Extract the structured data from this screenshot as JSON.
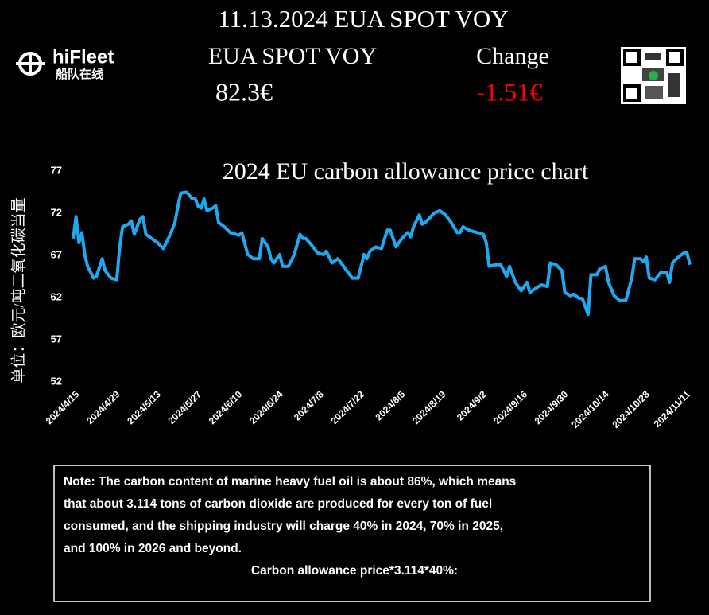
{
  "header": {
    "logo": "hiFleet",
    "logo_sub": "船队在线",
    "title": "11.13.2024 EUA SPOT VOY",
    "price_label": "EUA SPOT VOY",
    "change_label": "Change",
    "price": "82.3€",
    "change": "-1.51€"
  },
  "chart_data": {
    "type": "line",
    "title": "2024 EU carbon allowance price chart",
    "y_label": "单位：欧元/吨二氧化碳当量",
    "color": "#1eaaf0",
    "xlim": [
      "2024/4/15",
      "2024/11/13"
    ],
    "xticks": [
      "2024/4/15",
      "2024/4/29",
      "2024/5/13",
      "2024/5/27",
      "2024/6/10",
      "2024/6/24",
      "2024/7/8",
      "2024/7/22",
      "2024/8/5",
      "2024/8/19",
      "2024/9/2",
      "2024/9/16",
      "2024/9/30",
      "2024/10/14",
      "2024/10/28",
      "2024/11/11"
    ],
    "ylim": [
      52,
      77
    ],
    "yticks": [
      52,
      57,
      62,
      67,
      72,
      77
    ],
    "x": [
      "2024/4/15",
      "2024/4/16",
      "2024/4/17",
      "2024/4/18",
      "2024/4/19",
      "2024/4/20",
      "2024/4/22",
      "2024/4/23",
      "2024/4/25",
      "2024/4/26",
      "2024/4/28",
      "2024/4/30",
      "2024/5/1",
      "2024/5/2",
      "2024/5/4",
      "2024/5/5",
      "2024/5/6",
      "2024/5/8",
      "2024/5/9",
      "2024/5/10",
      "2024/5/12",
      "2024/5/14",
      "2024/5/16",
      "2024/5/18",
      "2024/5/20",
      "2024/5/21",
      "2024/5/22",
      "2024/5/24",
      "2024/5/26",
      "2024/5/27",
      "2024/5/28",
      "2024/5/29",
      "2024/5/30",
      "2024/5/31",
      "2024/6/2",
      "2024/6/3",
      "2024/6/4",
      "2024/6/6",
      "2024/6/8",
      "2024/6/11",
      "2024/6/12",
      "2024/6/14",
      "2024/6/16",
      "2024/6/18",
      "2024/6/19",
      "2024/6/21",
      "2024/6/22",
      "2024/6/23",
      "2024/6/25",
      "2024/6/26",
      "2024/6/28",
      "2024/6/30",
      "2024/7/2",
      "2024/7/3",
      "2024/7/4",
      "2024/7/6",
      "2024/7/8",
      "2024/7/10",
      "2024/7/11",
      "2024/7/13",
      "2024/7/15",
      "2024/7/17",
      "2024/7/18",
      "2024/7/20",
      "2024/7/22",
      "2024/7/24",
      "2024/7/25",
      "2024/7/26",
      "2024/7/28",
      "2024/7/30",
      "2024/8/1",
      "2024/8/2",
      "2024/8/3",
      "2024/8/4",
      "2024/8/6",
      "2024/8/8",
      "2024/8/9",
      "2024/8/10",
      "2024/8/12",
      "2024/8/13",
      "2024/8/14",
      "2024/8/16",
      "2024/8/17",
      "2024/8/19",
      "2024/8/21",
      "2024/8/23",
      "2024/8/25",
      "2024/8/26",
      "2024/8/27",
      "2024/8/29",
      "2024/9/1",
      "2024/9/3",
      "2024/9/4",
      "2024/9/5",
      "2024/9/7",
      "2024/9/9",
      "2024/9/11",
      "2024/9/12",
      "2024/9/14",
      "2024/9/15",
      "2024/9/16",
      "2024/9/18",
      "2024/9/19",
      "2024/9/21",
      "2024/9/23",
      "2024/9/25",
      "2024/9/26",
      "2024/9/28",
      "2024/9/30",
      "2024/10/1",
      "2024/10/3",
      "2024/10/4",
      "2024/10/6",
      "2024/10/7",
      "2024/10/9",
      "2024/10/10",
      "2024/10/12",
      "2024/10/13",
      "2024/10/15",
      "2024/10/16",
      "2024/10/18",
      "2024/10/20",
      "2024/10/22",
      "2024/10/24",
      "2024/10/25",
      "2024/10/27",
      "2024/10/28",
      "2024/10/29",
      "2024/10/30",
      "2024/11/1",
      "2024/11/3",
      "2024/11/5",
      "2024/11/6",
      "2024/11/7",
      "2024/11/9",
      "2024/11/11",
      "2024/11/12",
      "2024/11/13"
    ],
    "values": [
      69.0,
      71.6,
      68.5,
      69.7,
      67.1,
      65.7,
      64.3,
      64.5,
      66.6,
      65.2,
      64.3,
      64.1,
      68.0,
      70.4,
      70.7,
      71.1,
      69.5,
      71.3,
      71.6,
      69.5,
      69.0,
      68.5,
      67.8,
      69.2,
      70.9,
      72.8,
      74.4,
      74.5,
      73.7,
      73.7,
      72.8,
      72.6,
      73.7,
      72.3,
      72.6,
      72.9,
      70.9,
      70.4,
      69.7,
      69.4,
      69.7,
      67.1,
      66.6,
      66.6,
      69.0,
      68.0,
      66.6,
      66.1,
      67.1,
      65.7,
      65.7,
      67.1,
      69.5,
      69.0,
      69.0,
      68.2,
      67.3,
      67.1,
      67.5,
      66.1,
      66.6,
      65.7,
      65.2,
      64.3,
      64.3,
      67.1,
      66.6,
      67.5,
      68.0,
      67.8,
      70.0,
      70.0,
      69.0,
      68.0,
      69.0,
      69.7,
      69.2,
      70.4,
      71.8,
      70.7,
      70.9,
      71.6,
      72.0,
      72.3,
      71.8,
      70.9,
      69.7,
      69.7,
      70.4,
      70.0,
      69.7,
      69.5,
      68.5,
      65.7,
      65.9,
      65.9,
      64.5,
      65.7,
      63.8,
      63.3,
      62.8,
      63.8,
      62.6,
      63.1,
      63.5,
      63.3,
      66.1,
      65.9,
      65.2,
      62.6,
      62.2,
      62.4,
      61.9,
      61.9,
      60.0,
      64.7,
      64.7,
      65.4,
      65.7,
      63.8,
      62.2,
      61.6,
      61.7,
      64.3,
      66.6,
      66.6,
      66.3,
      66.8,
      64.3,
      64.1,
      65.0,
      65.0,
      63.8,
      66.1,
      66.8,
      67.3,
      67.3,
      65.9
    ]
  },
  "note": {
    "lines": [
      "Note: The carbon content of marine heavy fuel oil is about 86%, which means",
      "that about 3.114 tons of carbon dioxide are produced for every ton of fuel",
      "consumed, and the shipping industry will charge 40% in 2024, 70% in 2025,",
      "and 100% in 2026 and beyond."
    ],
    "formula": "Carbon allowance price*3.114*40%:"
  }
}
